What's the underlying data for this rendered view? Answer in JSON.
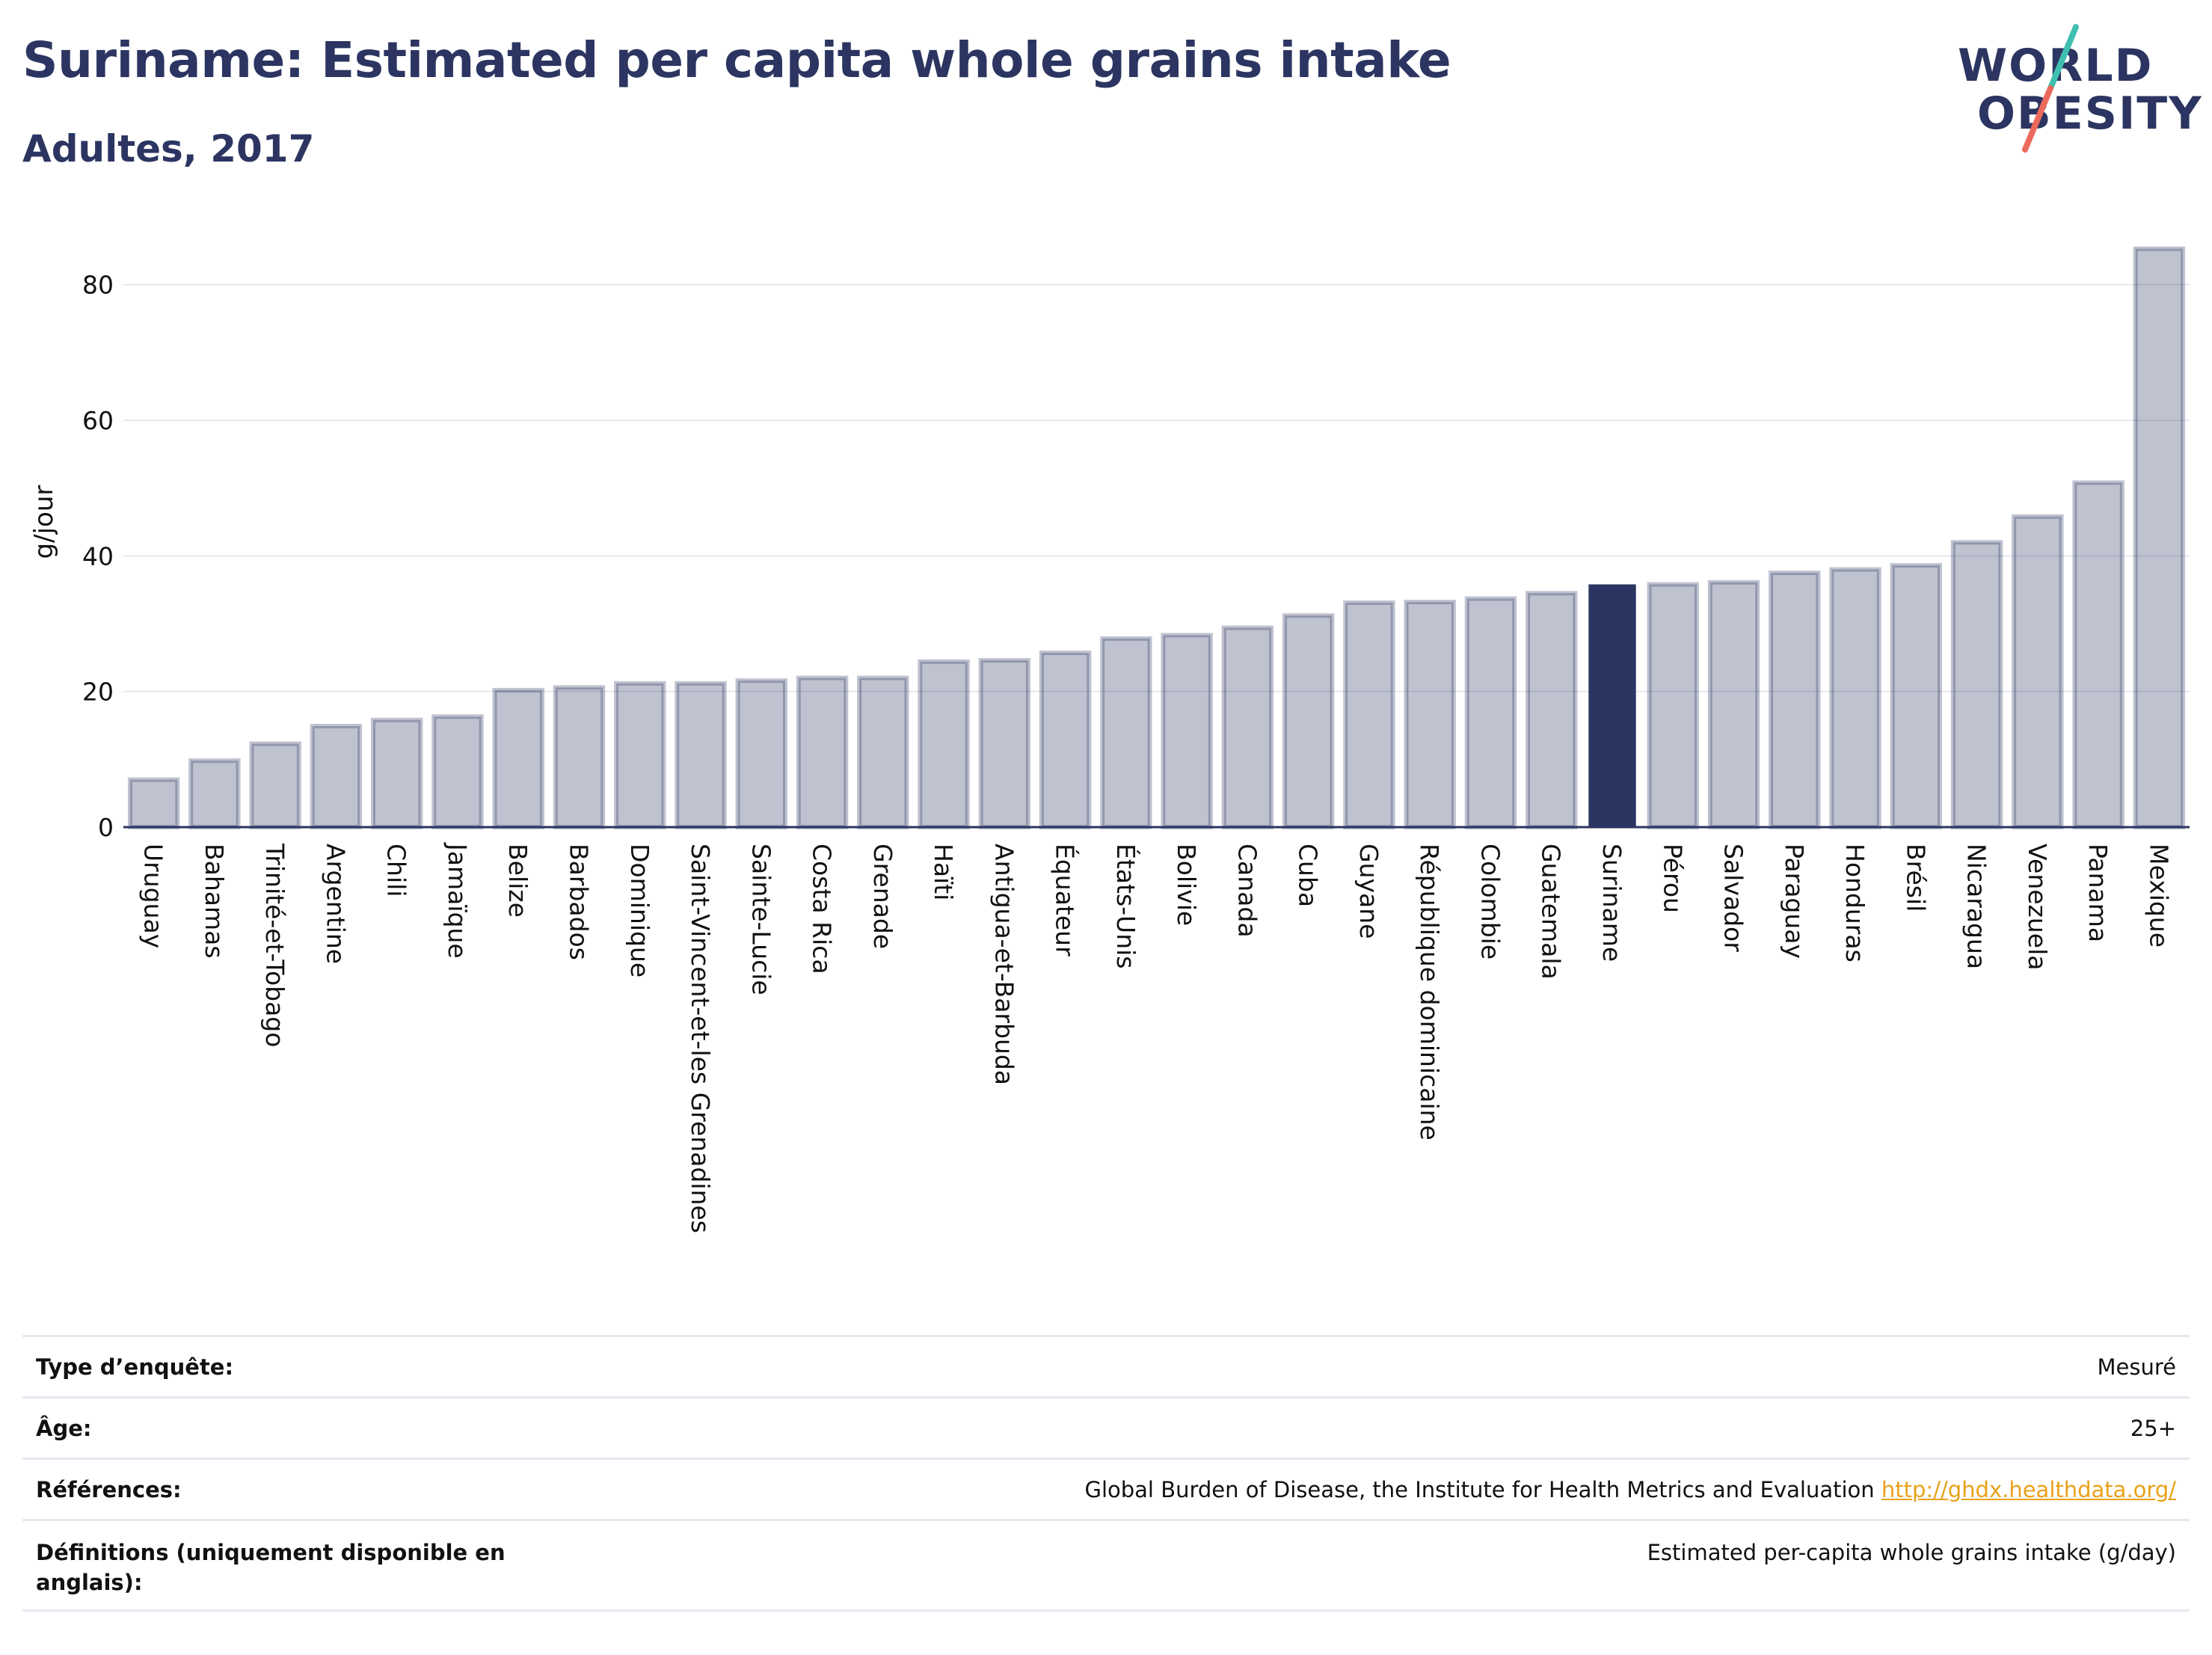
{
  "header": {
    "title": "Suriname: Estimated per capita whole grains intake",
    "subtitle": "Adultes, 2017"
  },
  "logo": {
    "line1": "WORLD",
    "line2": "OBESITY"
  },
  "colors": {
    "bar": "#2c3561",
    "highlight": "#2c3561",
    "text": "#2c3561",
    "link": "#e8a21a"
  },
  "chart_data": {
    "type": "bar",
    "ylabel": "g/jour",
    "ylim": [
      0,
      90
    ],
    "yticks": [
      0,
      20,
      40,
      60,
      80
    ],
    "grid": true,
    "highlight": "Suriname",
    "categories": [
      "Uruguay",
      "Bahamas",
      "Trinité-et-Tobago",
      "Argentine",
      "Chili",
      "Jamaïque",
      "Belize",
      "Barbados",
      "Dominique",
      "Saint-Vincent-et-les Grenadines",
      "Sainte-Lucie",
      "Costa Rica",
      "Grenade",
      "Haïti",
      "Antigua-et-Barbuda",
      "Équateur",
      "États-Unis",
      "Bolivie",
      "Canada",
      "Cuba",
      "Guyane",
      "République dominicaine",
      "Colombie",
      "Guatemala",
      "Suriname",
      "Pérou",
      "Salvador",
      "Paraguay",
      "Honduras",
      "Brésil",
      "Nicaragua",
      "Venezuela",
      "Panama",
      "Mexique"
    ],
    "values": [
      7,
      9.8,
      12.3,
      14.9,
      15.8,
      16.3,
      20.2,
      20.6,
      21.2,
      21.2,
      21.6,
      22,
      22,
      24.4,
      24.6,
      25.7,
      27.8,
      28.3,
      29.4,
      31.2,
      33.1,
      33.2,
      33.7,
      34.5,
      35.8,
      35.8,
      36.1,
      37.5,
      38,
      38.6,
      42,
      45.8,
      50.8,
      85.3
    ]
  },
  "info": [
    {
      "label": "Type d’enquête:",
      "value": "Mesuré"
    },
    {
      "label": "Âge:",
      "value": "25+"
    },
    {
      "label": "Références:",
      "value": "Global Burden of Disease, the Institute for Health Metrics and Evaluation",
      "link": "http://ghdx.healthdata.org/"
    },
    {
      "label": "Définitions (uniquement disponible en anglais):",
      "value": "Estimated per-capita whole grains intake (g/day)"
    }
  ]
}
